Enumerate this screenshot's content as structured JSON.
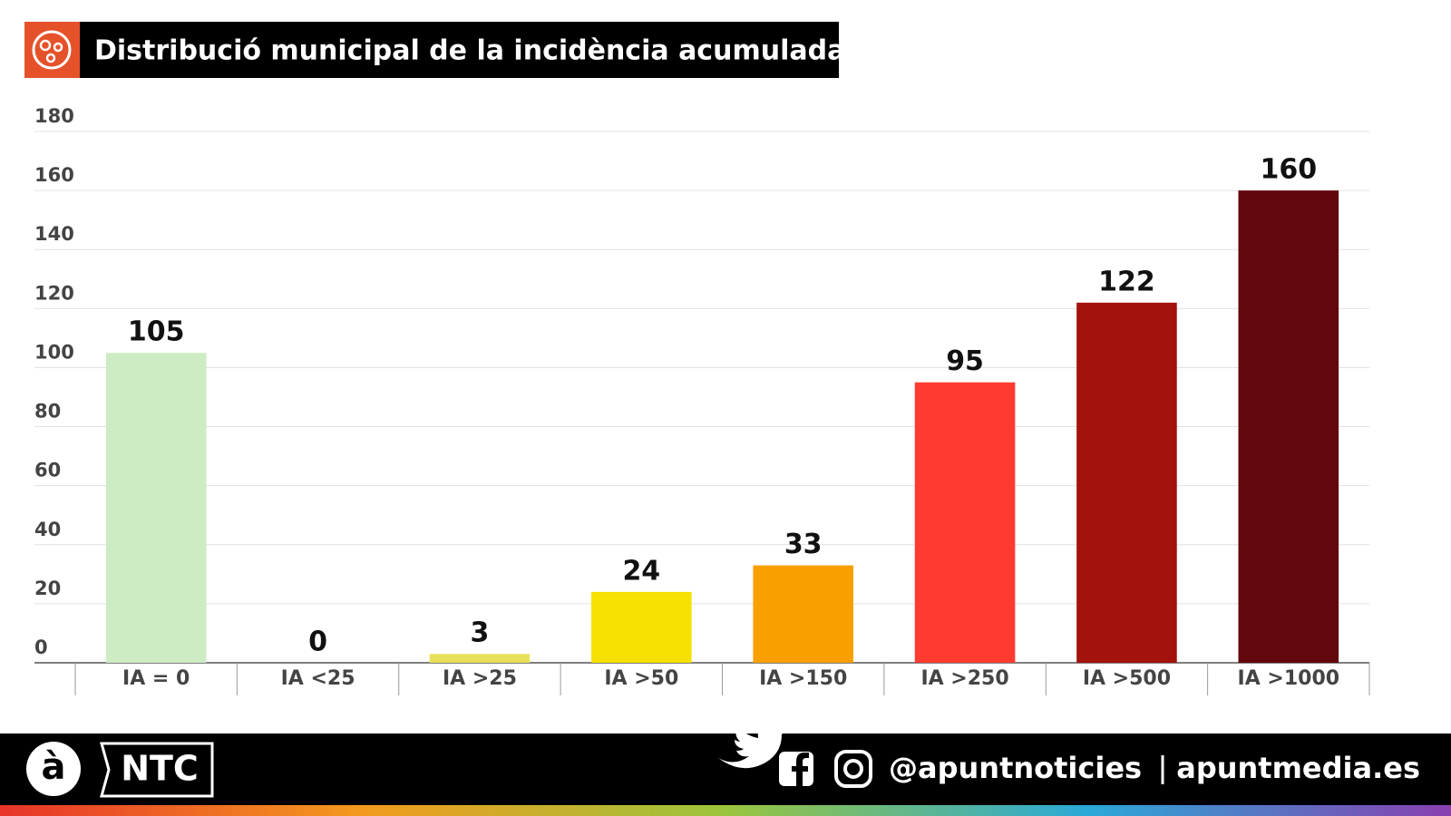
{
  "chart_data": {
    "type": "bar",
    "title": "Distribució municipal de la incidència acumulada",
    "categories": [
      "IA = 0",
      "IA <25",
      "IA >25",
      "IA >50",
      "IA >150",
      "IA >250",
      "IA >500",
      "IA >1000"
    ],
    "values": [
      105,
      0,
      3,
      24,
      33,
      95,
      122,
      160
    ],
    "colors": [
      "#cdecc4",
      "#dddddd",
      "#e8e05a",
      "#f5e000",
      "#f9a000",
      "#ff3b30",
      "#a3120c",
      "#62070b"
    ],
    "ylim": [
      0,
      180
    ],
    "yticks": [
      0,
      20,
      40,
      60,
      80,
      100,
      120,
      140,
      160,
      180
    ],
    "grid": true
  },
  "footer": {
    "logo": "à",
    "brand": "NTC",
    "handle": "@apuntnoticies",
    "website": "apuntmedia.es"
  }
}
